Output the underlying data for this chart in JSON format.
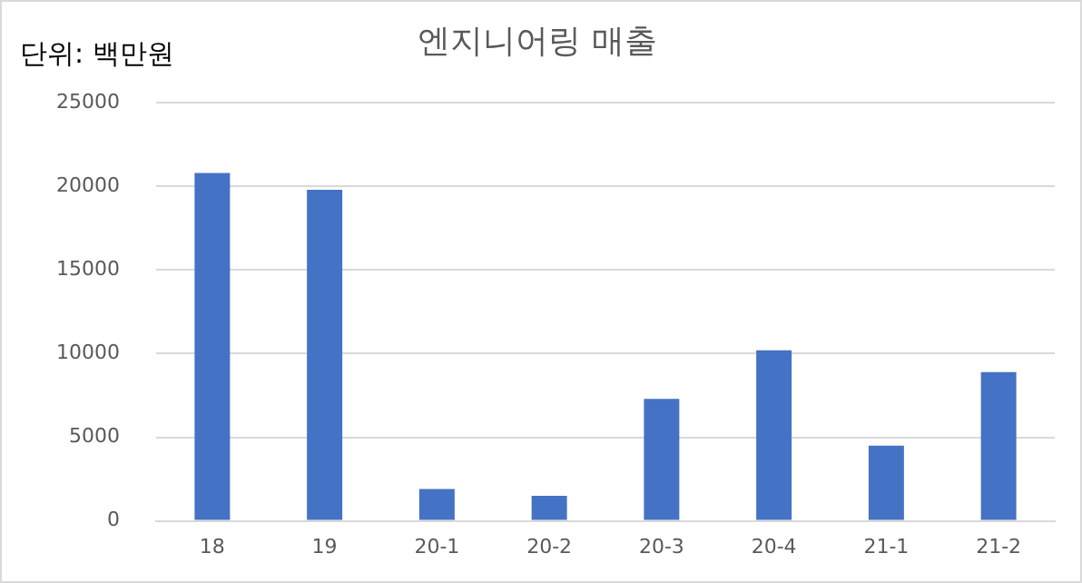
{
  "chart_data": {
    "type": "bar",
    "title": "엔지니어링 매출",
    "annotations": [
      "단위: 백만원"
    ],
    "categories": [
      "18",
      "19",
      "20-1",
      "20-2",
      "20-3",
      "20-4",
      "21-1",
      "21-2"
    ],
    "values": [
      20800,
      19800,
      1900,
      1500,
      7300,
      10200,
      4500,
      8900
    ],
    "color": "#4472c4",
    "ylim": [
      0,
      25000
    ],
    "yticks": [
      0,
      5000,
      10000,
      15000,
      20000,
      25000
    ],
    "grid": "y"
  }
}
